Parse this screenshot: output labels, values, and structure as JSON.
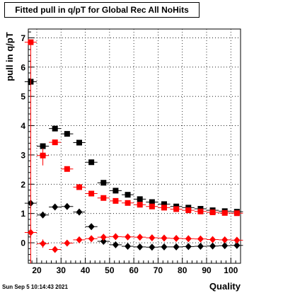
{
  "chart_data": {
    "type": "scatter",
    "title": "Fitted pull in q/pT for Global Rec All NoHits",
    "xlabel": "Quality",
    "ylabel": "pull in q/pT",
    "xlim": [
      16.5,
      104
    ],
    "ylim": [
      -0.7,
      7.3
    ],
    "xticks": [
      20,
      30,
      40,
      50,
      60,
      70,
      80,
      90,
      100
    ],
    "yticks": [
      0,
      1,
      2,
      3,
      4,
      5,
      6,
      7
    ],
    "grid": true,
    "x": [
      17.5,
      22.5,
      27.5,
      32.5,
      37.5,
      42.5,
      47.5,
      52.5,
      57.5,
      62.5,
      67.5,
      72.5,
      77.5,
      82.5,
      87.5,
      92.5,
      97.5,
      102.5
    ],
    "series": [
      {
        "marker": "square",
        "color": "#000000",
        "values": [
          5.5,
          3.3,
          3.9,
          3.72,
          3.42,
          2.75,
          2.05,
          1.78,
          1.64,
          1.49,
          1.39,
          1.32,
          1.24,
          1.2,
          1.16,
          1.11,
          1.08,
          1.06
        ]
      },
      {
        "marker": "square",
        "color": "#ff0000",
        "values": [
          6.85,
          2.98,
          3.43,
          2.52,
          1.9,
          1.68,
          1.53,
          1.43,
          1.36,
          1.3,
          1.24,
          1.2,
          1.15,
          1.11,
          1.07,
          1.04,
          1.02,
          1.01
        ]
      },
      {
        "marker": "diamond",
        "color": "#000000",
        "values": [
          1.35,
          0.95,
          1.22,
          1.24,
          1.05,
          0.55,
          0.05,
          -0.07,
          -0.12,
          -0.14,
          -0.15,
          -0.14,
          -0.14,
          -0.13,
          -0.12,
          -0.11,
          -0.1,
          -0.09
        ]
      },
      {
        "marker": "diamond",
        "color": "#ff0000",
        "values": [
          0.35,
          -0.03,
          -0.23,
          -0.01,
          0.1,
          0.14,
          0.19,
          0.21,
          0.2,
          0.19,
          0.17,
          0.16,
          0.15,
          0.14,
          0.13,
          0.11,
          0.1,
          0.09
        ]
      }
    ]
  },
  "footer": {
    "datestamp": "Sun Sep  5 10:14:43 2021"
  }
}
